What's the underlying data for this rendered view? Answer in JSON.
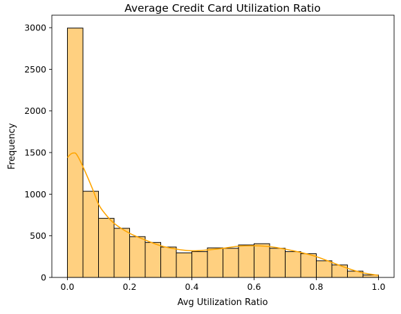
{
  "chart_data": {
    "type": "bar",
    "subtype": "histogram-with-kde",
    "title": "Average Credit Card Utilization Ratio",
    "xlabel": "Avg Utilization Ratio",
    "ylabel": "Frequency",
    "xlim": [
      -0.05,
      1.05
    ],
    "ylim": [
      0,
      3150
    ],
    "xticks": [
      0.0,
      0.2,
      0.4,
      0.6,
      0.8,
      1.0
    ],
    "xtick_labels": [
      "0.0",
      "0.2",
      "0.4",
      "0.6",
      "0.8",
      "1.0"
    ],
    "yticks": [
      0,
      500,
      1000,
      1500,
      2000,
      2500,
      3000
    ],
    "ytick_labels": [
      "0",
      "500",
      "1000",
      "1500",
      "2000",
      "2500",
      "3000"
    ],
    "grid": false,
    "legend": false,
    "bin_edges": [
      0.0,
      0.05,
      0.1,
      0.15,
      0.2,
      0.25,
      0.3,
      0.35,
      0.4,
      0.45,
      0.5,
      0.55,
      0.6,
      0.65,
      0.7,
      0.75,
      0.8,
      0.85,
      0.9,
      0.95,
      1.0
    ],
    "values": [
      2995,
      1035,
      710,
      590,
      490,
      420,
      365,
      295,
      310,
      355,
      350,
      390,
      405,
      350,
      310,
      285,
      200,
      150,
      75,
      30
    ],
    "kde": {
      "x": [
        0.0,
        0.01,
        0.02,
        0.03,
        0.05,
        0.08,
        0.1,
        0.12,
        0.15,
        0.2,
        0.25,
        0.3,
        0.35,
        0.4,
        0.45,
        0.5,
        0.55,
        0.6,
        0.65,
        0.7,
        0.75,
        0.8,
        0.85,
        0.9,
        0.95,
        1.0
      ],
      "y": [
        1440,
        1480,
        1495,
        1475,
        1330,
        1070,
        880,
        770,
        650,
        530,
        450,
        380,
        340,
        320,
        330,
        350,
        375,
        380,
        370,
        340,
        300,
        250,
        180,
        110,
        55,
        25
      ]
    },
    "colors": {
      "bar_fill": "#ffd080",
      "bar_edge": "#000000",
      "kde_line": "#ffa500"
    }
  }
}
